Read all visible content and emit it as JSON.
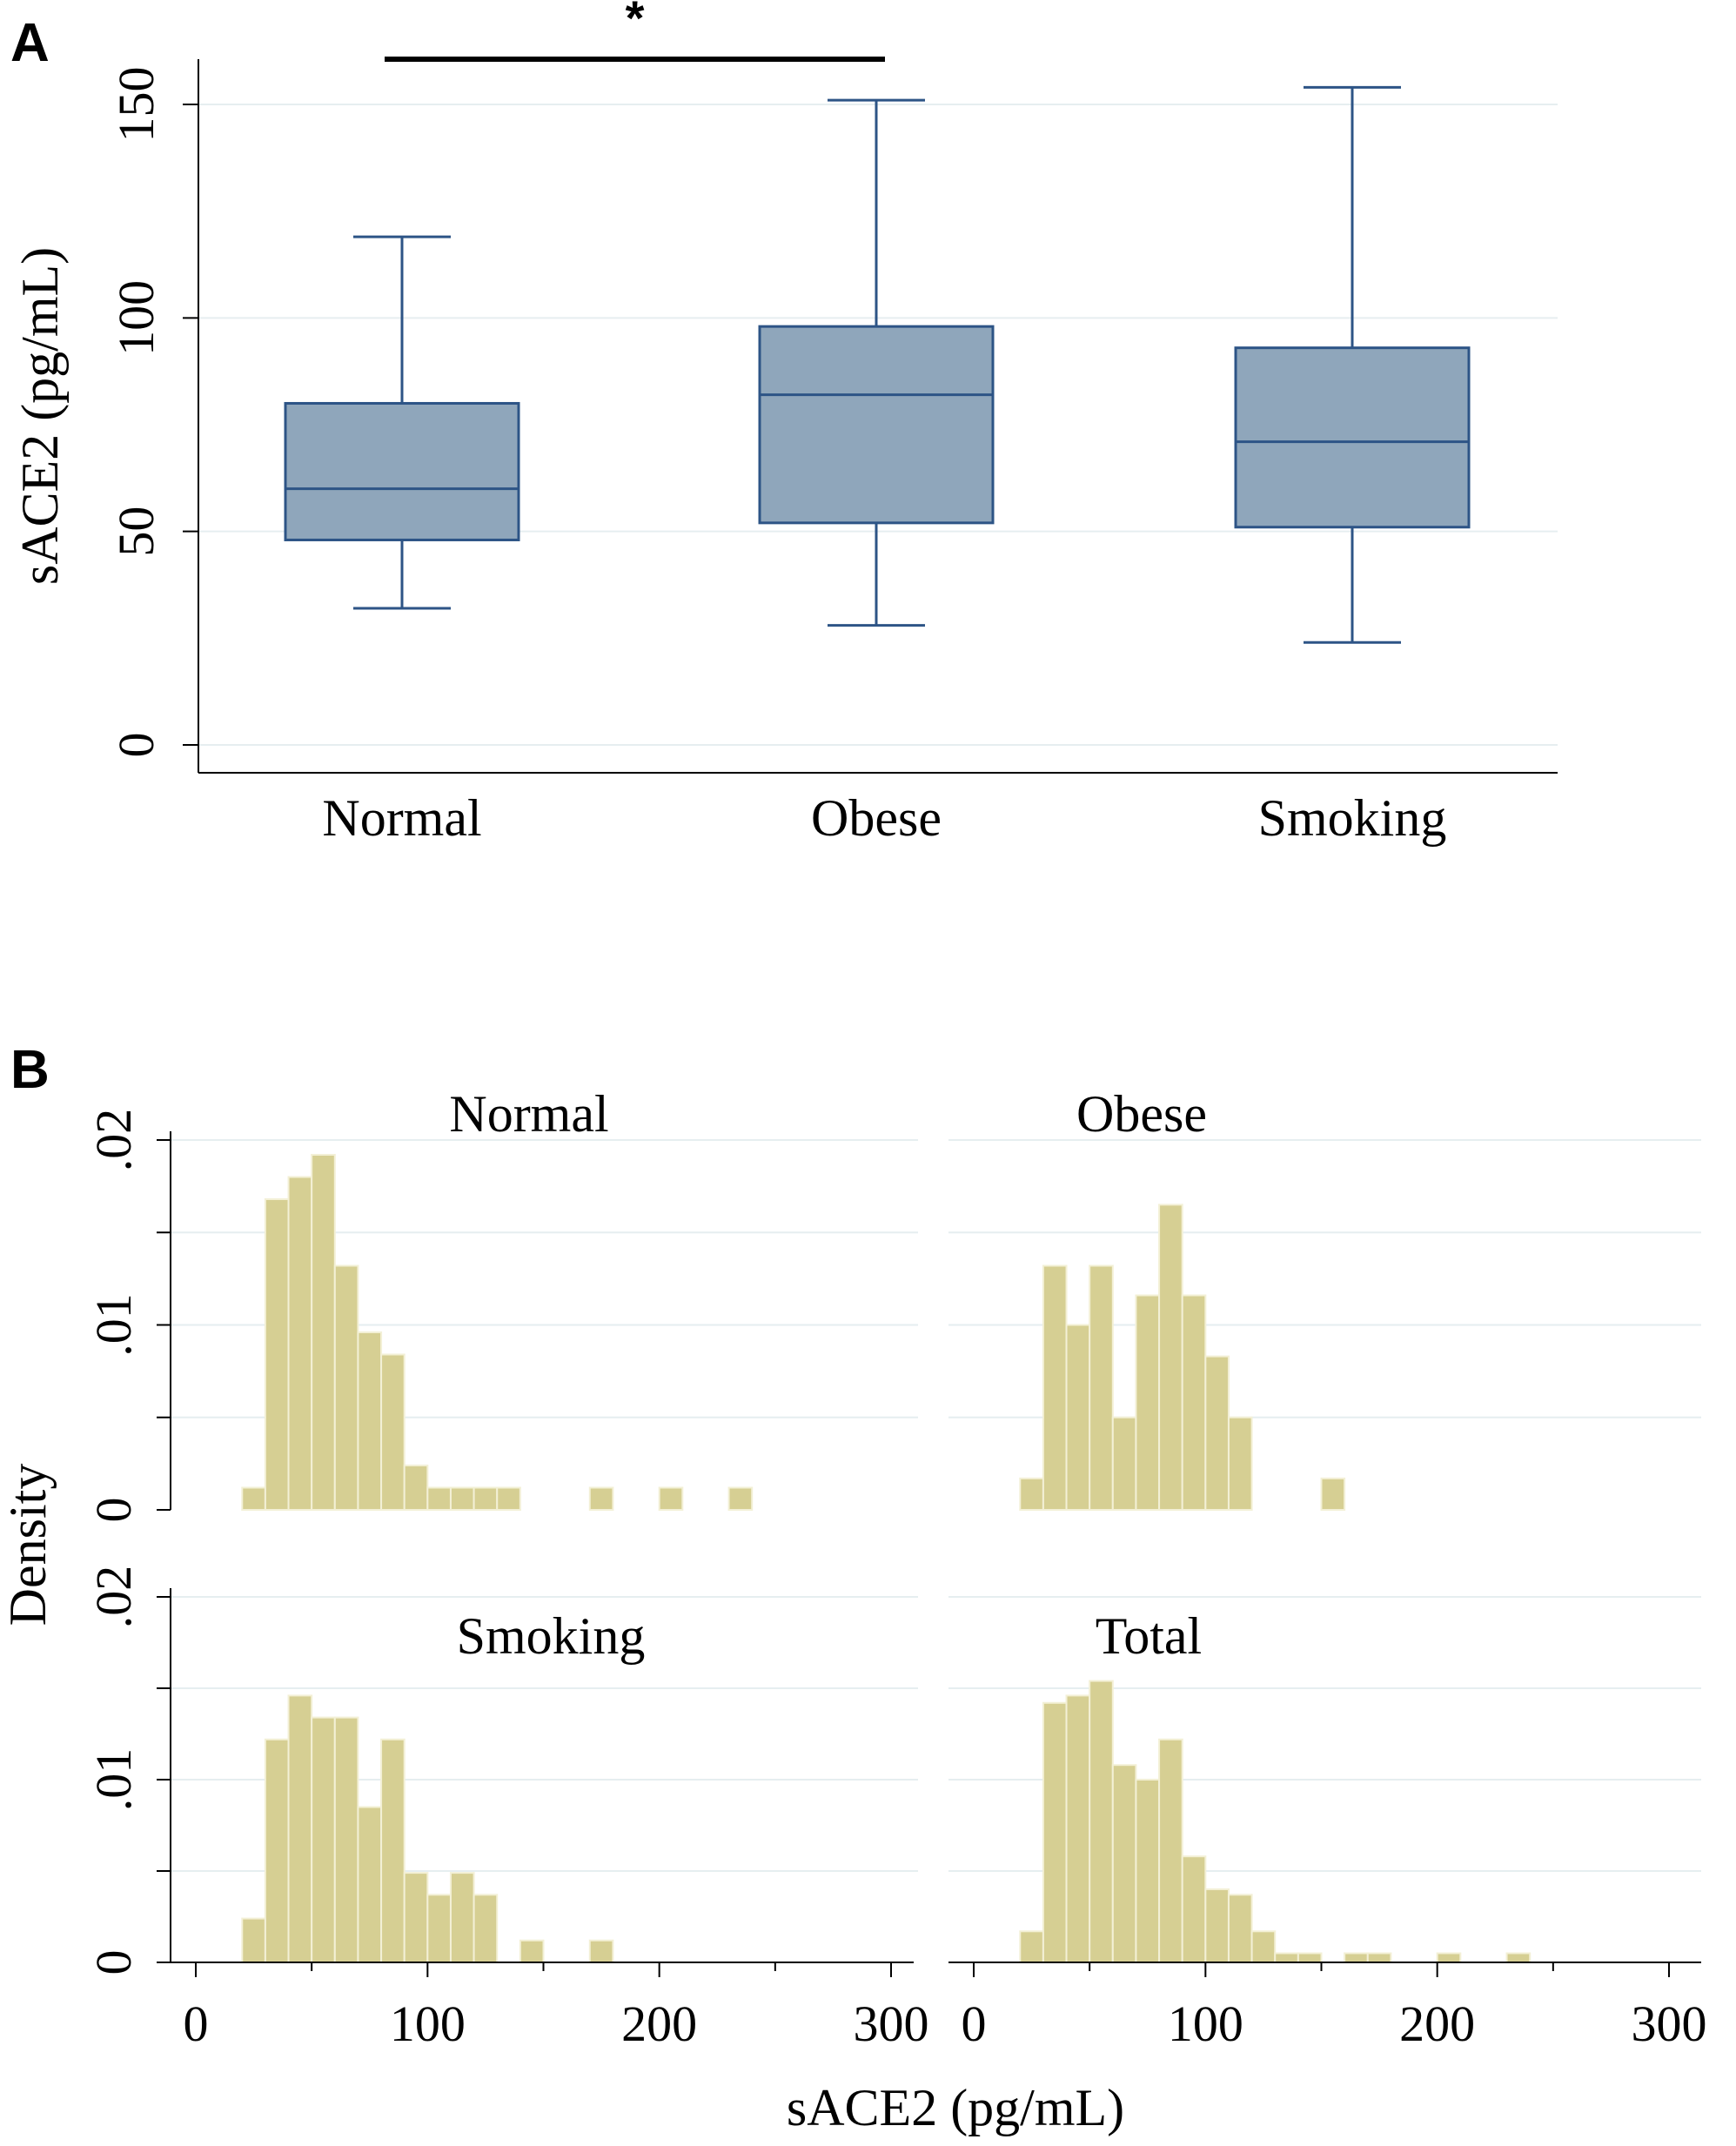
{
  "panels": {
    "a": {
      "letter": "A"
    },
    "b": {
      "letter": "B"
    }
  },
  "chart_data": [
    {
      "type": "box",
      "title": "",
      "xlabel": "",
      "ylabel": "sACE2 (pg/mL)",
      "ylim": [
        0,
        160
      ],
      "yticks": [
        0,
        50,
        100,
        150
      ],
      "grid": true,
      "colors": {
        "box_fill": "#8fa6bb",
        "box_edge": "#2d5486",
        "grid": "#e6eef0",
        "axis": "#000000"
      },
      "categories": [
        "Normal",
        "Obese",
        "Smoking"
      ],
      "boxes": [
        {
          "name": "Normal",
          "whisker_low": 32,
          "q1": 48,
          "median": 60,
          "q3": 80,
          "whisker_high": 119
        },
        {
          "name": "Obese",
          "whisker_low": 28,
          "q1": 52,
          "median": 82,
          "q3": 98,
          "whisker_high": 151
        },
        {
          "name": "Smoking",
          "whisker_low": 24,
          "q1": 51,
          "median": 71,
          "q3": 93,
          "whisker_high": 154
        }
      ],
      "annotations": [
        {
          "type": "significance",
          "from": "Normal",
          "to": "Obese",
          "label": "*"
        }
      ]
    },
    {
      "type": "histogram",
      "title": "",
      "xlabel": "sACE2 (pg/mL)",
      "ylabel": "Density",
      "xlim": [
        0,
        300
      ],
      "ylim": [
        0,
        0.02
      ],
      "xticks": [
        0,
        100,
        200,
        300
      ],
      "yticks": [
        0,
        0.01,
        0.02
      ],
      "ytick_labels": [
        "0",
        ".01",
        ".02"
      ],
      "grid": true,
      "bin_width": 10,
      "colors": {
        "bar_fill": "#d6cf93",
        "bar_edge": "#f3f0d6",
        "grid": "#e6eef0",
        "axis": "#000000"
      },
      "subplots": [
        {
          "name": "Normal",
          "position": "top-left",
          "bins": [
            [
              25,
              0.0012
            ],
            [
              35,
              0.0168
            ],
            [
              45,
              0.018
            ],
            [
              55,
              0.0192
            ],
            [
              65,
              0.0132
            ],
            [
              75,
              0.0096
            ],
            [
              85,
              0.0084
            ],
            [
              95,
              0.0024
            ],
            [
              105,
              0.0012
            ],
            [
              115,
              0.0012
            ],
            [
              125,
              0.0012
            ],
            [
              135,
              0.0012
            ],
            [
              175,
              0.0012
            ],
            [
              205,
              0.0012
            ],
            [
              235,
              0.0012
            ]
          ]
        },
        {
          "name": "Obese",
          "position": "top-right",
          "bins": [
            [
              25,
              0.0017
            ],
            [
              35,
              0.0132
            ],
            [
              45,
              0.01
            ],
            [
              55,
              0.0132
            ],
            [
              65,
              0.005
            ],
            [
              75,
              0.0116
            ],
            [
              85,
              0.0165
            ],
            [
              95,
              0.0116
            ],
            [
              105,
              0.0083
            ],
            [
              115,
              0.005
            ],
            [
              155,
              0.0017
            ]
          ]
        },
        {
          "name": "Smoking",
          "position": "bottom-left",
          "bins": [
            [
              25,
              0.0024
            ],
            [
              35,
              0.0122
            ],
            [
              45,
              0.0146
            ],
            [
              55,
              0.0134
            ],
            [
              65,
              0.0134
            ],
            [
              75,
              0.0085
            ],
            [
              85,
              0.0122
            ],
            [
              95,
              0.0049
            ],
            [
              105,
              0.0037
            ],
            [
              115,
              0.0049
            ],
            [
              125,
              0.0037
            ],
            [
              145,
              0.0012
            ],
            [
              175,
              0.0012
            ]
          ]
        },
        {
          "name": "Total",
          "position": "bottom-right",
          "bins": [
            [
              25,
              0.0017
            ],
            [
              35,
              0.0142
            ],
            [
              45,
              0.0146
            ],
            [
              55,
              0.0154
            ],
            [
              65,
              0.0108
            ],
            [
              75,
              0.01
            ],
            [
              85,
              0.0122
            ],
            [
              95,
              0.0058
            ],
            [
              105,
              0.004
            ],
            [
              115,
              0.0037
            ],
            [
              125,
              0.0017
            ],
            [
              135,
              0.0005
            ],
            [
              145,
              0.0005
            ],
            [
              165,
              0.0005
            ],
            [
              175,
              0.0005
            ],
            [
              205,
              0.0005
            ],
            [
              235,
              0.0005
            ]
          ]
        }
      ]
    }
  ]
}
